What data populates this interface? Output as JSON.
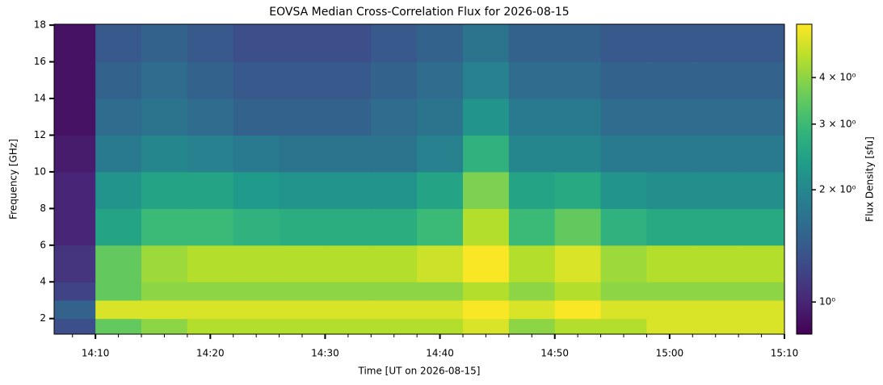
{
  "chart_data": {
    "type": "heatmap",
    "title": "EOVSA Median Cross-Correlation Flux for 2026-08-15",
    "xlabel": "Time [UT on 2026-08-15]",
    "ylabel": "Frequency [GHz]",
    "colorbar_label": "Flux Density [sfu]",
    "colormap": "viridis",
    "color_scale": "log",
    "xlim": [
      "14:06:24",
      "15:10"
    ],
    "xticks": [
      "14:10",
      "14:20",
      "14:30",
      "14:40",
      "14:50",
      "15:00",
      "15:10"
    ],
    "xminorticks": [
      "14:08",
      "14:12",
      "14:14",
      "14:16",
      "14:18",
      "14:22",
      "14:24",
      "14:26",
      "14:28",
      "14:32",
      "14:34",
      "14:36",
      "14:38",
      "14:42",
      "14:44",
      "14:46",
      "14:48",
      "14:52",
      "14:54",
      "14:56",
      "14:58",
      "15:02",
      "15:04",
      "15:06",
      "15:08"
    ],
    "ylim": [
      1.15,
      18.05
    ],
    "yticks": [
      2,
      4,
      6,
      8,
      10,
      12,
      14,
      16,
      18
    ],
    "clim": [
      0.82,
      5.56
    ],
    "cticks": [
      {
        "value": 1,
        "label": "10⁰"
      },
      {
        "value": 2,
        "label": "2 × 10⁰"
      },
      {
        "value": 3,
        "label": "3 × 10⁰"
      },
      {
        "value": 4,
        "label": "4 × 10⁰"
      }
    ],
    "xbins": [
      "14:06:24",
      "14:10",
      "14:14",
      "14:18",
      "14:22",
      "14:26",
      "14:30",
      "14:34",
      "14:38",
      "14:42",
      "14:46",
      "14:50",
      "14:54",
      "14:58",
      "15:02",
      "15:06",
      "15:10"
    ],
    "ybins": [
      1.15,
      2,
      3,
      4,
      6,
      8,
      10,
      12,
      14,
      16,
      18.05
    ],
    "values": [
      [
        1.3,
        3.5,
        4.0,
        4.5,
        4.5,
        4.5,
        4.5,
        4.5,
        4.5,
        5,
        4,
        4.5,
        4.5,
        5,
        5,
        5
      ],
      [
        1.5,
        5,
        5,
        5,
        5,
        5,
        5,
        5,
        5,
        5.5,
        5,
        5.5,
        5,
        5,
        5,
        5
      ],
      [
        1.2,
        3.5,
        4,
        4,
        4,
        4,
        4,
        4,
        4,
        4.5,
        4,
        4.5,
        4,
        4,
        4,
        4
      ],
      [
        1.1,
        3.5,
        4.2,
        4.5,
        4.5,
        4.5,
        4.5,
        4.5,
        4.8,
        5.5,
        4.5,
        5,
        4.2,
        4.5,
        4.5,
        4.5
      ],
      [
        1.0,
        2.5,
        3,
        3,
        2.8,
        2.7,
        2.7,
        2.7,
        3,
        4.5,
        3,
        3.5,
        2.8,
        2.6,
        2.6,
        2.6
      ],
      [
        1.0,
        2.2,
        2.5,
        2.5,
        2.3,
        2.2,
        2.2,
        2.2,
        2.5,
        3.8,
        2.5,
        2.6,
        2.2,
        2.1,
        2.1,
        2.1
      ],
      [
        0.95,
        1.8,
        2,
        1.9,
        1.8,
        1.7,
        1.7,
        1.7,
        1.9,
        2.8,
        2,
        2,
        1.8,
        1.8,
        1.8,
        1.8
      ],
      [
        0.9,
        1.6,
        1.7,
        1.6,
        1.5,
        1.5,
        1.5,
        1.6,
        1.7,
        2.2,
        1.8,
        1.8,
        1.6,
        1.6,
        1.6,
        1.6
      ],
      [
        0.9,
        1.5,
        1.6,
        1.5,
        1.4,
        1.4,
        1.4,
        1.5,
        1.6,
        1.9,
        1.6,
        1.6,
        1.5,
        1.5,
        1.5,
        1.5
      ],
      [
        0.9,
        1.4,
        1.5,
        1.4,
        1.3,
        1.3,
        1.3,
        1.4,
        1.5,
        1.7,
        1.5,
        1.5,
        1.4,
        1.4,
        1.4,
        1.4
      ]
    ]
  }
}
